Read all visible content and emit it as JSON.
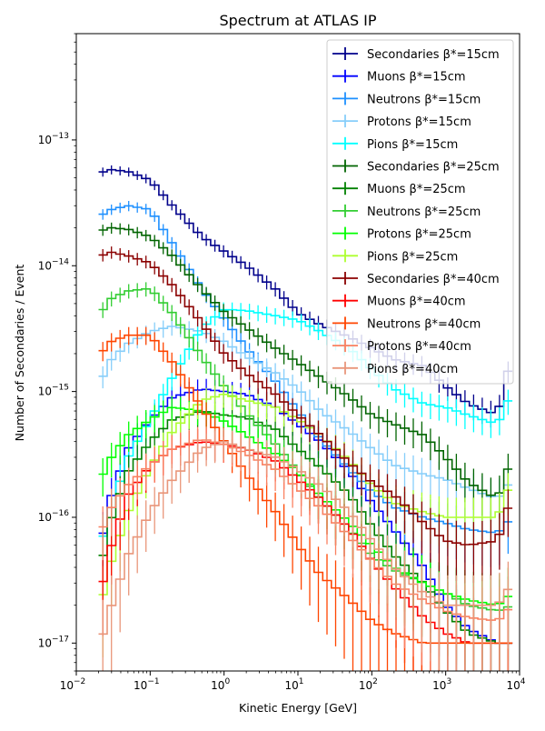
{
  "chart_data": {
    "type": "line",
    "title": "Spectrum at ATLAS IP",
    "xlabel": "Kinetic Energy [GeV]",
    "ylabel": "Number of Secondaries / Event",
    "x_scale": "log",
    "y_scale": "log",
    "xlim": [
      0.01,
      10000
    ],
    "ylim": [
      6e-18,
      7e-13
    ],
    "x_ticks": [
      {
        "value": 0.01,
        "base": "10",
        "exp": "−2"
      },
      {
        "value": 0.1,
        "base": "10",
        "exp": "−1"
      },
      {
        "value": 1,
        "base": "10",
        "exp": "0"
      },
      {
        "value": 10,
        "base": "10",
        "exp": "1"
      },
      {
        "value": 100,
        "base": "10",
        "exp": "2"
      },
      {
        "value": 1000,
        "base": "10",
        "exp": "3"
      },
      {
        "value": 10000,
        "base": "10",
        "exp": "4"
      }
    ],
    "y_ticks": [
      {
        "value": 1e-17,
        "base": "10",
        "exp": "−17"
      },
      {
        "value": 1e-16,
        "base": "10",
        "exp": "−16"
      },
      {
        "value": 1e-15,
        "base": "10",
        "exp": "−15"
      },
      {
        "value": 1e-14,
        "base": "10",
        "exp": "−14"
      },
      {
        "value": 1e-13,
        "base": "10",
        "exp": "−13"
      }
    ],
    "grid": false,
    "legend_position": "top-right",
    "x": [
      0.021,
      0.03,
      0.05,
      0.1,
      0.2,
      0.5,
      1,
      2,
      5,
      10,
      20,
      50,
      100,
      200,
      500,
      1000,
      2000,
      5000,
      8000
    ],
    "series": [
      {
        "name": "Secondaries β*=15cm",
        "color": "#00008b",
        "values": [
          5.5e-14,
          5.8e-14,
          5.6e-14,
          4.8e-14,
          3e-14,
          1.7e-14,
          1.3e-14,
          1e-14,
          6.5e-15,
          4.2e-15,
          3.4e-15,
          2.7e-15,
          2.2e-15,
          1.8e-15,
          1.6e-15,
          1.1e-15,
          8e-16,
          6.5e-16,
          2e-15
        ]
      },
      {
        "name": "Muons β*=15cm",
        "color": "#0000ff",
        "values": [
          6e-17,
          1.5e-16,
          3.5e-16,
          6e-16,
          9e-16,
          1.05e-15,
          1e-15,
          9.5e-16,
          7.5e-16,
          5.5e-16,
          4e-16,
          2.3e-16,
          1.3e-16,
          8e-17,
          4e-17,
          2e-17,
          1.3e-17,
          1e-17,
          1e-17
        ]
      },
      {
        "name": "Neutrons β*=15cm",
        "color": "#1e90ff",
        "values": [
          2.5e-14,
          2.8e-14,
          3e-14,
          2.8e-14,
          1.5e-14,
          6.5e-15,
          3.8e-15,
          2.2e-15,
          1.2e-15,
          7e-16,
          4.2e-16,
          2.4e-16,
          1.6e-16,
          1.2e-16,
          1e-16,
          9e-17,
          8e-17,
          7.5e-17,
          1e-16
        ]
      },
      {
        "name": "Protons β*=15cm",
        "color": "#87cefa",
        "values": [
          1.2e-15,
          1.8e-15,
          2.4e-15,
          3e-15,
          3.3e-15,
          3e-15,
          2.5e-15,
          1.9e-15,
          1.4e-15,
          1.05e-15,
          7e-16,
          4.8e-16,
          3.5e-16,
          2.6e-16,
          2.2e-16,
          2e-16,
          1.7e-16,
          1.4e-16,
          2e-16
        ]
      },
      {
        "name": "Pions β*=15cm",
        "color": "#00ffff",
        "values": [
          6e-17,
          1.2e-16,
          3e-16,
          6e-16,
          1.3e-15,
          3.2e-15,
          4.5e-15,
          4.4e-15,
          4e-15,
          3.7e-15,
          3e-15,
          2.2e-15,
          1.5e-15,
          1.05e-15,
          8e-16,
          7.5e-16,
          6.5e-16,
          5.5e-16,
          1e-15
        ]
      },
      {
        "name": "Secondaries β*=25cm",
        "color": "#006400",
        "values": [
          1.9e-14,
          2e-14,
          1.95e-14,
          1.7e-14,
          1.2e-14,
          6.5e-15,
          4.3e-15,
          3.2e-15,
          2.2e-15,
          1.7e-15,
          1.3e-15,
          9e-16,
          6.5e-16,
          5.5e-16,
          4.5e-16,
          3e-16,
          1.9e-16,
          1.4e-16,
          3e-16
        ]
      },
      {
        "name": "Muons β*=25cm",
        "color": "#008000",
        "values": [
          4e-17,
          1e-16,
          2.3e-16,
          4e-16,
          6e-16,
          7e-16,
          6.5e-16,
          6.2e-16,
          5e-16,
          3.5e-16,
          2.5e-16,
          1.5e-16,
          8.5e-17,
          5e-17,
          3e-17,
          1.8e-17,
          1.2e-17,
          1e-17,
          1e-17
        ]
      },
      {
        "name": "Neutrons β*=25cm",
        "color": "#32cd32",
        "values": [
          4.2e-15,
          5.5e-15,
          6.3e-15,
          6.6e-15,
          4.2e-15,
          1.9e-15,
          1.1e-15,
          6.8e-16,
          3.8e-16,
          2.3e-16,
          1.4e-16,
          8e-17,
          5e-17,
          3.8e-17,
          3e-17,
          2.5e-17,
          2e-17,
          1.8e-17,
          2e-17
        ]
      },
      {
        "name": "Protons β*=25cm",
        "color": "#00ff00",
        "values": [
          2e-16,
          3e-16,
          4.5e-16,
          6e-16,
          7.5e-16,
          7e-16,
          5.8e-16,
          4.5e-16,
          3.2e-16,
          2.3e-16,
          1.5e-16,
          9e-17,
          6e-17,
          4e-17,
          3e-17,
          2.5e-17,
          2.2e-17,
          2e-17,
          2.5e-17
        ]
      },
      {
        "name": "Pions β*=25cm",
        "color": "#adff2f",
        "values": [
          2e-17,
          4.5e-17,
          1.1e-16,
          2.5e-16,
          4.8e-16,
          8.5e-16,
          9.5e-16,
          8.5e-16,
          7.5e-16,
          6e-16,
          4.5e-16,
          2.8e-16,
          1.8e-16,
          1.3e-16,
          1.1e-16,
          1e-16,
          1e-16,
          1e-16,
          2e-16
        ]
      },
      {
        "name": "Secondaries β*=40cm",
        "color": "#8b0000",
        "values": [
          1.2e-14,
          1.28e-14,
          1.2e-14,
          1.05e-14,
          7e-15,
          3.5e-15,
          2e-15,
          1.4e-15,
          9.5e-16,
          6.5e-16,
          4.5e-16,
          2.7e-16,
          1.9e-16,
          1.5e-16,
          9e-17,
          6.5e-17,
          6e-17,
          6.5e-17,
          1.5e-16
        ]
      },
      {
        "name": "Muons β*=40cm",
        "color": "#ff0000",
        "values": [
          2.5e-17,
          6e-17,
          1.5e-16,
          2.6e-16,
          3.5e-16,
          4e-16,
          3.8e-16,
          3.5e-16,
          2.8e-16,
          2e-16,
          1.4e-16,
          8e-17,
          4.5e-17,
          2.8e-17,
          1.6e-17,
          1.2e-17,
          1e-17,
          1e-17,
          1e-17
        ]
      },
      {
        "name": "Neutrons β*=40cm",
        "color": "#ff4500",
        "values": [
          2e-15,
          2.5e-15,
          2.8e-15,
          2.8e-15,
          1.7e-15,
          7.5e-16,
          4e-16,
          2.2e-16,
          1.1e-16,
          6e-17,
          3.5e-17,
          2.2e-17,
          1.5e-17,
          1.2e-17,
          1e-17,
          1e-17,
          1e-17,
          1e-17,
          1e-17
        ]
      },
      {
        "name": "Protons β*=40cm",
        "color": "#fa8060",
        "values": [
          7.5e-17,
          1.2e-16,
          1.8e-16,
          2.6e-16,
          3.5e-16,
          4.2e-16,
          3.8e-16,
          3.2e-16,
          2.4e-16,
          1.7e-16,
          1.2e-16,
          7e-17,
          4.5e-17,
          3e-17,
          2.2e-17,
          1.8e-17,
          1.6e-17,
          1.5e-17,
          2e-17
        ]
      },
      {
        "name": "Pions β*=40cm",
        "color": "#e9967a",
        "values": [
          1e-17,
          2e-17,
          5e-17,
          1.1e-16,
          2e-16,
          3.5e-16,
          4e-16,
          3.5e-16,
          3e-16,
          2.4e-16,
          1.8e-16,
          1.1e-16,
          6.5e-17,
          4e-17,
          2.5e-17,
          2e-17,
          2e-17,
          2e-17,
          3e-17
        ]
      }
    ]
  }
}
